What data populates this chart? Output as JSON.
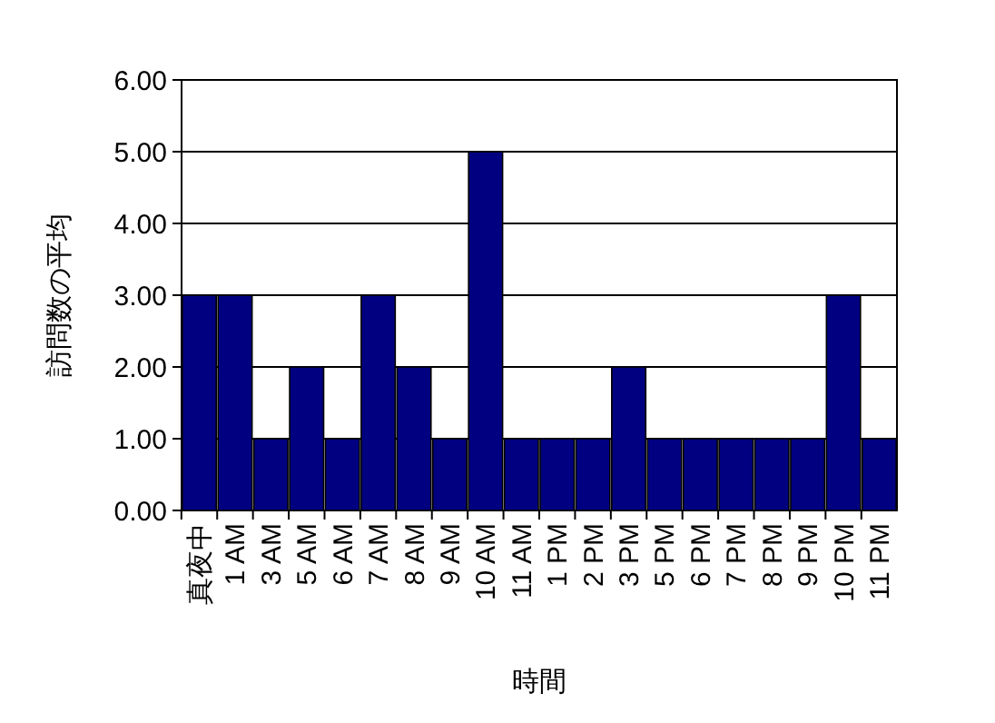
{
  "chart_data": {
    "type": "bar",
    "xlabel": "時間",
    "ylabel": "訪問数の平均",
    "categories": [
      "真夜中",
      "1 AM",
      "3 AM",
      "5 AM",
      "6 AM",
      "7 AM",
      "8 AM",
      "9 AM",
      "10 AM",
      "11 AM",
      "1 PM",
      "2 PM",
      "3 PM",
      "5 PM",
      "6 PM",
      "7 PM",
      "8 PM",
      "9 PM",
      "10 PM",
      "11 PM"
    ],
    "values": [
      3,
      3,
      1,
      2,
      1,
      3,
      2,
      1,
      5,
      1,
      1,
      1,
      2,
      1,
      1,
      1,
      1,
      1,
      3,
      1
    ],
    "color": "#000080",
    "ylim": [
      0,
      6
    ],
    "yticks": [
      {
        "value": 0,
        "label": "0.00"
      },
      {
        "value": 1,
        "label": "1.00"
      },
      {
        "value": 2,
        "label": "2.00"
      },
      {
        "value": 3,
        "label": "3.00"
      },
      {
        "value": 4,
        "label": "4.00"
      },
      {
        "value": 5,
        "label": "5.00"
      },
      {
        "value": 6,
        "label": "6.00"
      }
    ],
    "grid": "y"
  }
}
